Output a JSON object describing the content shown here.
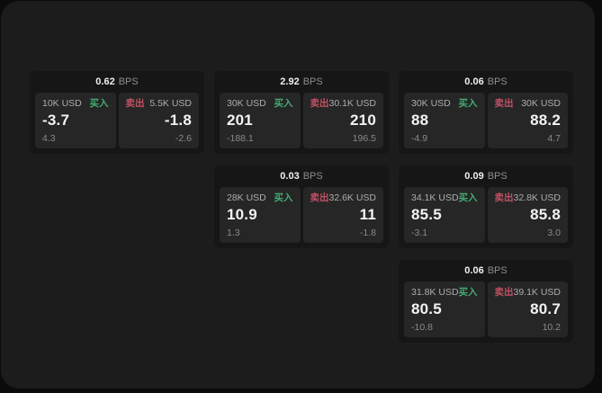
{
  "labels": {
    "bps_unit": "BPS",
    "buy": "买入",
    "sell": "卖出"
  },
  "colors": {
    "buy_green": "#44ab72",
    "sell_red": "#c25064",
    "panel_bg": "#1c1c1c",
    "card_bg": "#161616",
    "tile_bg": "#262626"
  },
  "cards": [
    {
      "row": 1,
      "col": 1,
      "bps": "0.62",
      "buy": {
        "amount": "10K USD",
        "price": "-3.7",
        "delta": "4.3"
      },
      "sell": {
        "amount": "5.5K USD",
        "price": "-1.8",
        "delta": "-2.6"
      }
    },
    {
      "row": 1,
      "col": 2,
      "bps": "2.92",
      "buy": {
        "amount": "30K USD",
        "price": "201",
        "delta": "-188.1"
      },
      "sell": {
        "amount": "30.1K USD",
        "price": "210",
        "delta": "196.5"
      }
    },
    {
      "row": 1,
      "col": 3,
      "bps": "0.06",
      "buy": {
        "amount": "30K USD",
        "price": "88",
        "delta": "-4.9"
      },
      "sell": {
        "amount": "30K USD",
        "price": "88.2",
        "delta": "4.7"
      }
    },
    {
      "row": 2,
      "col": 2,
      "bps": "0.03",
      "buy": {
        "amount": "28K USD",
        "price": "10.9",
        "delta": "1.3"
      },
      "sell": {
        "amount": "32.6K USD",
        "price": "11",
        "delta": "-1.8"
      }
    },
    {
      "row": 2,
      "col": 3,
      "bps": "0.09",
      "buy": {
        "amount": "34.1K USD",
        "price": "85.5",
        "delta": "-3.1"
      },
      "sell": {
        "amount": "32.8K USD",
        "price": "85.8",
        "delta": "3.0"
      }
    },
    {
      "row": 3,
      "col": 3,
      "bps": "0.06",
      "buy": {
        "amount": "31.8K USD",
        "price": "80.5",
        "delta": "-10.8"
      },
      "sell": {
        "amount": "39.1K USD",
        "price": "80.7",
        "delta": "10.2"
      }
    }
  ]
}
